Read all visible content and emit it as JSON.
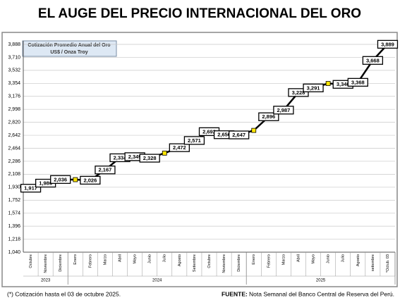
{
  "chart_data": {
    "type": "line",
    "title": "EL AUGE DEL PRECIO INTERNACIONAL DEL ORO",
    "legend_lines": [
      "Cotización Promedio Anual del Oro",
      "US$ / Onza Troy"
    ],
    "categories": [
      "Octubre",
      "Noviembre",
      "Diciembre",
      "Enero",
      "Febrero",
      "Marzo",
      "Abril",
      "Mayo",
      "Junio",
      "Julio",
      "Agosto",
      "Setiembre",
      "Octubre",
      "Noviembre",
      "Diciembre",
      "Enero",
      "Febrero",
      "Marzo",
      "Abril",
      "Mayo",
      "Junio",
      "Julio",
      "Agosto",
      "setiembre",
      "*Octub. 03"
    ],
    "year_groups": [
      {
        "label": "2023",
        "count": 3
      },
      {
        "label": "2024",
        "count": 12
      },
      {
        "label": "2025",
        "count": 10
      }
    ],
    "values": [
      1917,
      1986,
      2036,
      2034,
      2026,
      2167,
      2334,
      2349,
      2328,
      2398,
      2472,
      2571,
      2692,
      2650,
      2647,
      2709,
      2896,
      2987,
      3228,
      3291,
      3352,
      3340,
      3368,
      3668,
      3889
    ],
    "value_labels": [
      "1,917",
      "1,986",
      "2,036",
      null,
      "2,026",
      "2,167",
      "2,334",
      "2,349",
      "2,328",
      null,
      "2,472",
      "2,571",
      "2,692",
      "2,650",
      "2,647",
      null,
      "2,896",
      "2,987",
      "3,228",
      "3,291",
      null,
      "3,340",
      "3,368",
      "3,668",
      "3,889"
    ],
    "color": "#000000",
    "marker_color": "#ffe600",
    "ylim": [
      1040,
      3888
    ],
    "yticks": [
      {
        "value": 1040,
        "label": "1,040"
      },
      {
        "value": 1218,
        "label": "1,218"
      },
      {
        "value": 1396,
        "label": "1,396"
      },
      {
        "value": 1574,
        "label": "1,574"
      },
      {
        "value": 1752,
        "label": "1,752"
      },
      {
        "value": 1930,
        "label": "1,930"
      },
      {
        "value": 2108,
        "label": "2,108"
      },
      {
        "value": 2286,
        "label": "2,286"
      },
      {
        "value": 2464,
        "label": "2,464"
      },
      {
        "value": 2642,
        "label": "2,642"
      },
      {
        "value": 2820,
        "label": "2,820"
      },
      {
        "value": 2998,
        "label": "2,998"
      },
      {
        "value": 3176,
        "label": "3,176"
      },
      {
        "value": 3354,
        "label": "3,354"
      },
      {
        "value": 3532,
        "label": "3,532"
      },
      {
        "value": 3710,
        "label": "3,710"
      },
      {
        "value": 3888,
        "label": "3,888"
      }
    ],
    "grid": true,
    "footnote": "(*) Cotización hasta el 03 de octubre 2025.",
    "source_label": "FUENTE:",
    "source": "Nota Semanal del Banco Central de Reserva del Perú."
  }
}
